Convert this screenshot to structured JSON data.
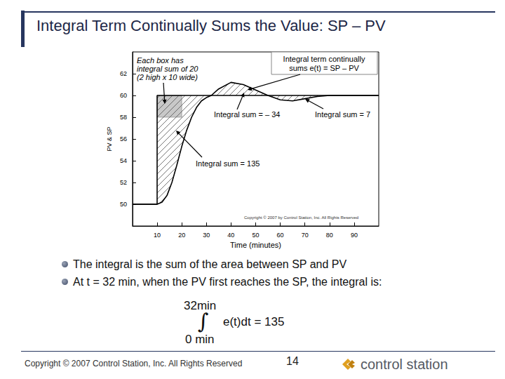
{
  "slide": {
    "title": "Integral Term Continually Sums the Value: SP – PV",
    "bullets": [
      "The integral is the sum of the area between SP and PV",
      "At t = 32 min, when the PV first reaches the SP, the integral is:"
    ],
    "formula": {
      "upper": "32min",
      "symbol": "∫",
      "integrand": "e(t)dt = 135",
      "lower": "0 min"
    },
    "footer": {
      "copyright": "Copyright © 2007 Control Station, Inc.  All Rights Reserved",
      "page": "14",
      "logo": "control station"
    }
  },
  "chart_data": {
    "type": "line",
    "xlabel": "Time (minutes)",
    "ylabel": "PV & SP",
    "xlim": [
      0,
      100
    ],
    "ylim": [
      48,
      64
    ],
    "xticks": [
      10,
      20,
      30,
      40,
      50,
      60,
      70,
      80,
      90
    ],
    "yticks": [
      50,
      52,
      54,
      56,
      58,
      60,
      62
    ],
    "grid": false,
    "series": [
      {
        "x": [
          0,
          10,
          10,
          100
        ],
        "values": [
          50,
          50,
          60,
          60
        ],
        "color": "#000000",
        "line_style": "solid"
      },
      {
        "x": [
          0,
          10,
          12,
          14,
          16,
          18,
          20,
          22,
          24,
          26,
          28,
          30,
          32,
          35,
          40,
          45,
          50,
          55,
          60,
          65,
          70,
          75,
          80,
          90,
          100
        ],
        "values": [
          50,
          50,
          50.2,
          50.8,
          52,
          53.6,
          55.3,
          56.8,
          58,
          58.9,
          59.5,
          59.8,
          60,
          60.6,
          61.2,
          61,
          60.5,
          60,
          59.6,
          59.5,
          59.7,
          59.9,
          60,
          60,
          60
        ],
        "color": "#000000",
        "line_style": "solid"
      }
    ],
    "highlight": {
      "x": [
        10,
        20
      ],
      "y": [
        58,
        60
      ],
      "color": "#c8c8c8"
    },
    "annotations": [
      "Each box has\nintegral sum of 20\n(2 high x 10 wide)",
      "Integral term continually\nsums e(t) = SP – PV",
      "Integral sum = – 34",
      "Integral sum = 7",
      "Integral sum = 135"
    ],
    "copyright": "Copyright © 2007 by Control Station, Inc. All Rights Reserved"
  }
}
